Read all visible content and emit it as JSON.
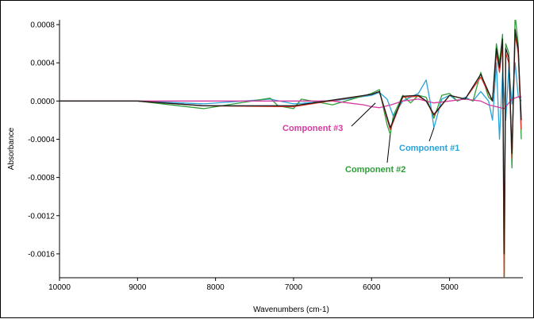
{
  "chart_data": {
    "type": "line",
    "title": "",
    "xlabel": "Wavenumbers (cm-1)",
    "ylabel": "Absorbance",
    "xlim": [
      10000,
      4060
    ],
    "ylim": [
      -0.00185,
      0.00085
    ],
    "x_ticks": [
      10000,
      9000,
      8000,
      7000,
      6000,
      5000
    ],
    "x_tick_labels": [
      "10000",
      "9000",
      "8000",
      "7000",
      "6000",
      "5000"
    ],
    "y_ticks": [
      0.0008,
      0.0004,
      0.0,
      -0.0004,
      -0.0008,
      -0.0012,
      -0.0016
    ],
    "y_tick_labels": [
      "0.0008",
      "0.0004",
      "0.0000",
      "-0.0004",
      "-0.0008",
      "-0.0012",
      "-0.0016"
    ],
    "grid": false,
    "series": [
      {
        "name": "Component #1",
        "color": "#29a3d9",
        "x": [
          10000,
          9000,
          8150,
          7300,
          7000,
          6500,
          6000,
          5900,
          5800,
          5720,
          5600,
          5500,
          5400,
          5300,
          5250,
          5200,
          5100,
          5000,
          4900,
          4800,
          4700,
          4600,
          4500,
          4450,
          4400,
          4360,
          4320,
          4280,
          4240,
          4200,
          4160,
          4120,
          4080
        ],
        "y": [
          0.0,
          0.0,
          -3e-05,
          2e-05,
          -3e-05,
          0.0,
          6e-05,
          9e-05,
          2e-05,
          -0.00016,
          0.0,
          4e-05,
          8e-05,
          0.00022,
          0.0,
          -0.00028,
          2e-05,
          6e-05,
          0.0,
          4e-05,
          0.0,
          0.0001,
          0.0,
          -0.0002,
          0.0004,
          -0.0004,
          0.0003,
          -0.0002,
          0.00036,
          -3e-05,
          0.0004,
          5e-05,
          0.0
        ]
      },
      {
        "name": "Component #2",
        "color": "#2f9e3a",
        "x": [
          10000,
          9000,
          8150,
          7300,
          7200,
          7000,
          6900,
          6500,
          6000,
          5900,
          5800,
          5760,
          5720,
          5600,
          5500,
          5400,
          5300,
          5200,
          5100,
          5000,
          4900,
          4800,
          4700,
          4600,
          4500,
          4450,
          4400,
          4360,
          4320,
          4300,
          4280,
          4240,
          4200,
          4160,
          4120,
          4080
        ],
        "y": [
          0.0,
          0.0,
          -8e-05,
          3e-05,
          -5e-05,
          -8e-05,
          2e-05,
          -4e-05,
          8e-05,
          0.00012,
          -0.00025,
          -0.00035,
          -0.00015,
          6e-05,
          -2e-05,
          6e-05,
          4e-05,
          -0.00018,
          6e-05,
          8e-05,
          0.0,
          3e-05,
          0.0,
          0.0003,
          4e-05,
          0.0,
          0.0006,
          0.0004,
          0.0007,
          -0.0021,
          0.0006,
          0.0005,
          -0.0007,
          0.0009,
          0.0006,
          -0.0004
        ]
      },
      {
        "name": "Component #3",
        "color": "#d63aa0",
        "x": [
          10000,
          9000,
          8000,
          7000,
          6500,
          6300,
          6100,
          6000,
          5900,
          5750,
          5600,
          5400,
          5200,
          5000,
          4800,
          4600,
          4500,
          4400,
          4300,
          4200,
          4100,
          4080
        ],
        "y": [
          0.0,
          0.0,
          0.0,
          0.0,
          0.0,
          -2e-05,
          -4e-05,
          -6e-05,
          -7e-05,
          -4e-05,
          0.0,
          2e-05,
          -2e-05,
          0.0,
          2e-05,
          0.0,
          -4e-05,
          -6e-05,
          -8e-05,
          2e-05,
          5e-05,
          4e-05
        ]
      },
      {
        "name": "",
        "color": "#e8342c",
        "x": [
          10000,
          9000,
          8150,
          7000,
          6000,
          5900,
          5760,
          5600,
          5400,
          5300,
          5200,
          5000,
          4800,
          4600,
          4450,
          4400,
          4360,
          4320,
          4300,
          4280,
          4240,
          4200,
          4160,
          4120,
          4080
        ],
        "y": [
          0.0,
          0.0,
          -5e-05,
          -6e-05,
          7e-05,
          0.0001,
          -0.0003,
          4e-05,
          5e-05,
          0.0,
          -0.00015,
          6e-05,
          2e-05,
          0.00025,
          0.0,
          0.0005,
          0.0003,
          0.0006,
          -0.0019,
          0.0005,
          0.0004,
          -0.0006,
          0.0007,
          0.0005,
          -0.0003
        ]
      },
      {
        "name": "",
        "color": "#1d1d1d",
        "x": [
          10000,
          9000,
          8150,
          7000,
          6000,
          5900,
          5760,
          5600,
          5400,
          5300,
          5200,
          5000,
          4800,
          4600,
          4450,
          4400,
          4360,
          4320,
          4300,
          4280,
          4240,
          4200,
          4160,
          4120,
          4080
        ],
        "y": [
          0.0,
          0.0,
          -5e-05,
          -5e-05,
          7e-05,
          0.0001,
          -0.00028,
          5e-05,
          6e-05,
          0.0,
          -0.00014,
          6e-05,
          2e-05,
          0.00028,
          0.0,
          0.00055,
          0.00035,
          0.00065,
          -0.0016,
          0.00055,
          0.00045,
          -0.00055,
          0.00075,
          0.00055,
          -0.0002
        ]
      }
    ],
    "annotations": [
      {
        "text": "Component #3",
        "color": "#d63aa0",
        "points_to": [
          5950,
          -2e-05
        ]
      },
      {
        "text": "Component #2",
        "color": "#2f9e3a",
        "points_to": [
          5760,
          -0.00035
        ]
      },
      {
        "text": "Component #1",
        "color": "#29a3d9",
        "points_to": [
          5200,
          -0.00028
        ]
      }
    ]
  }
}
